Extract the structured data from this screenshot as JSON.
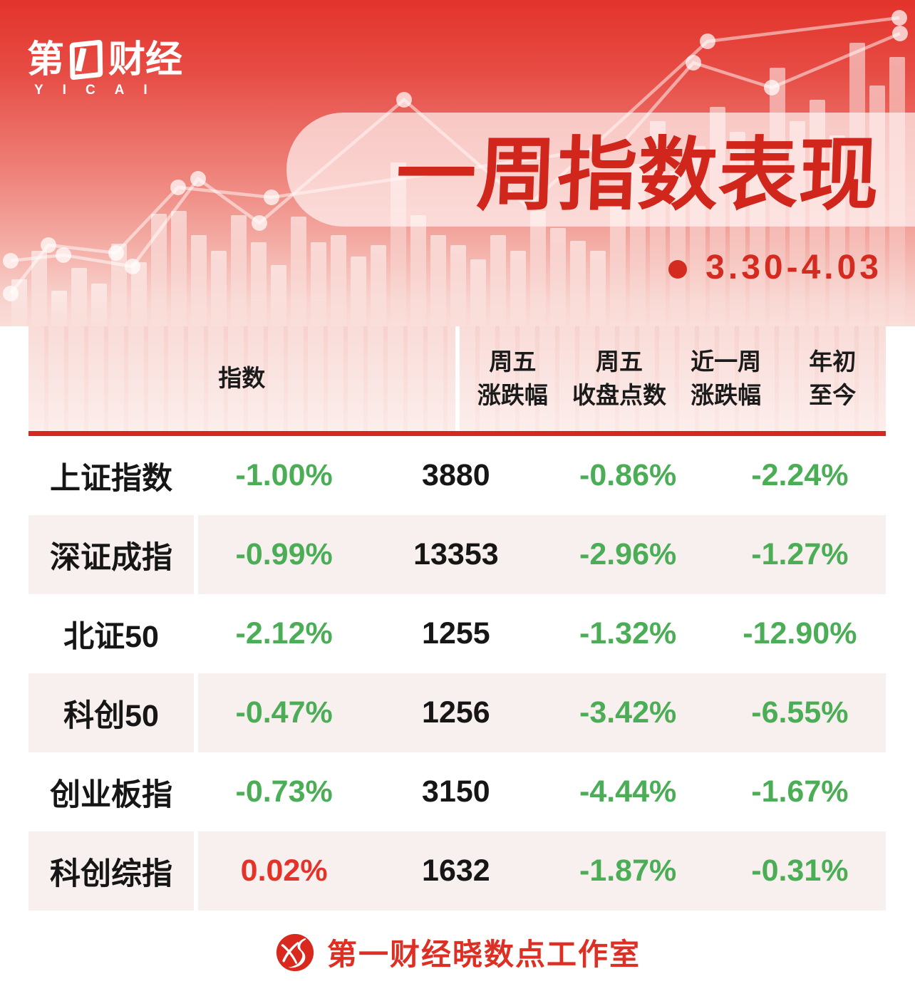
{
  "colors": {
    "brand_red": "#e3332b",
    "title_red": "#d0261c",
    "value_red": "#e5332a",
    "value_green": "#4bad56",
    "divider_red": "#d5281e",
    "row_pink": "#f8f0ee"
  },
  "brand": {
    "cjk_prefix": "第",
    "digit": "1",
    "cjk_suffix": "财经",
    "latin": "YICAI"
  },
  "hero": {
    "title": "一周指数表现",
    "date_range": "3.30-4.03"
  },
  "table": {
    "headers": [
      {
        "line1": "指数",
        "line2": ""
      },
      {
        "line1": "周五",
        "line2": "涨跌幅"
      },
      {
        "line1": "周五",
        "line2": "收盘点数"
      },
      {
        "line1": "近一周",
        "line2": "涨跌幅"
      },
      {
        "line1": "年初",
        "line2": "至今"
      }
    ],
    "rows": [
      {
        "name": "上证指数",
        "values": [
          "-1.00%",
          "3880",
          "-0.86%",
          "-2.24%"
        ]
      },
      {
        "name": "深证成指",
        "values": [
          "-0.99%",
          "13353",
          "-2.96%",
          "-1.27%"
        ]
      },
      {
        "name": "北证50",
        "values": [
          "-2.12%",
          "1255",
          "-1.32%",
          "-12.90%"
        ]
      },
      {
        "name": "科创50",
        "values": [
          "-0.47%",
          "1256",
          "-3.42%",
          "-6.55%"
        ]
      },
      {
        "name": "创业板指",
        "values": [
          "-0.73%",
          "3150",
          "-4.44%",
          "-1.67%"
        ]
      },
      {
        "name": "科创综指",
        "values": [
          "0.02%",
          "1632",
          "-1.87%",
          "-0.31%"
        ]
      }
    ]
  },
  "footer": {
    "studio": "第一财经晓数点工作室"
  },
  "chart_data": {
    "type": "table",
    "title": "一周指数表现",
    "date_range": "3.30-4.03",
    "columns": [
      "指数",
      "周五涨跌幅",
      "周五收盘点数",
      "近一周涨跌幅",
      "年初至今"
    ],
    "rows": [
      [
        "上证指数",
        "-1.00%",
        "3880",
        "-0.86%",
        "-2.24%"
      ],
      [
        "深证成指",
        "-0.99%",
        "13353",
        "-2.96%",
        "-1.27%"
      ],
      [
        "北证50",
        "-2.12%",
        "1255",
        "-1.32%",
        "-12.90%"
      ],
      [
        "科创50",
        "-0.47%",
        "1256",
        "-3.42%",
        "-6.55%"
      ],
      [
        "创业板指",
        "-0.73%",
        "3150",
        "-4.44%",
        "-1.67%"
      ],
      [
        "科创综指",
        "0.02%",
        "1632",
        "-1.87%",
        "-0.31%"
      ]
    ]
  }
}
